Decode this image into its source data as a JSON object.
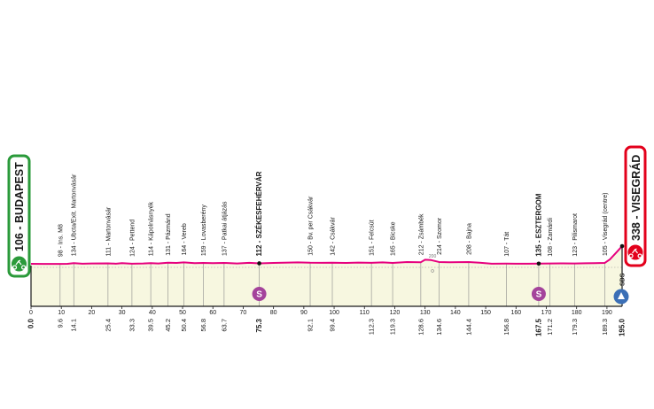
{
  "colors": {
    "profile_line": "#e6007e",
    "profile_fill": "#f7f7e0",
    "start_green": "#2a9a3a",
    "finish_red": "#e3001b",
    "sprint_purple": "#a4439b",
    "kom_blue": "#3b6fb6",
    "axis": "#1a1a1a",
    "text": "#1a1a1a"
  },
  "chart_data": {
    "type": "area",
    "start": {
      "altitude": "106",
      "name": "BUDAPEST"
    },
    "finish": {
      "altitude": "338",
      "name": "VISEGRÁD"
    },
    "x_ticks": [
      0,
      10,
      20,
      30,
      40,
      50,
      60,
      70,
      80,
      90,
      100,
      110,
      120,
      130,
      140,
      150,
      160,
      170,
      180,
      190
    ],
    "x_tick_labels": [
      "0",
      "10",
      "20",
      "30",
      "40",
      "50",
      "60",
      "70",
      "80",
      "90",
      "100",
      "110",
      "120",
      "130",
      "140",
      "150",
      "160",
      "170",
      "180",
      "190"
    ],
    "xlim": [
      0,
      195
    ],
    "total_distance_label": "195.0",
    "profile": {
      "x": [
        0,
        4,
        9.6,
        12,
        14.1,
        17,
        20,
        25.4,
        28,
        30,
        33.3,
        37,
        39.5,
        42,
        45.2,
        48,
        50.4,
        54,
        56.8,
        60,
        63.7,
        68,
        72,
        75.3,
        80,
        85,
        88,
        92.1,
        96,
        99.4,
        104,
        108,
        112.3,
        116,
        119.3,
        124,
        128.6,
        130,
        132,
        134.6,
        138,
        141,
        144.4,
        148,
        152,
        156.8,
        160,
        164,
        167.5,
        171.2,
        175,
        179.3,
        183,
        186,
        189.3,
        191,
        193,
        195
      ],
      "y": [
        106,
        104,
        105,
        106,
        115,
        108,
        110,
        112,
        108,
        115,
        107,
        110,
        115,
        111,
        120,
        118,
        125,
        115,
        117,
        114,
        118,
        110,
        119,
        112,
        118,
        122,
        125,
        120,
        119,
        120,
        117,
        122,
        119,
        125,
        118,
        130,
        127,
        160,
        155,
        130,
        126,
        128,
        130,
        120,
        108,
        109,
        107,
        108,
        109,
        110,
        112,
        110,
        113,
        115,
        118,
        165,
        250,
        338
      ]
    },
    "waypoints": [
      {
        "km": 9.6,
        "km_label": "9.6",
        "label": "98 - Ins. M8",
        "major": false
      },
      {
        "km": 14.1,
        "km_label": "14.1",
        "label": "134 - Ubcta/Exit. Martonvásár",
        "major": false
      },
      {
        "km": 25.4,
        "km_label": "25.4",
        "label": "111 - Martonvásár",
        "major": false
      },
      {
        "km": 33.3,
        "km_label": "33.3",
        "label": "124 - Pettend",
        "major": false
      },
      {
        "km": 39.5,
        "km_label": "39.5",
        "label": "114 - Kápolnásnyék",
        "major": false
      },
      {
        "km": 45.2,
        "km_label": "45.2",
        "label": "131 - Pázmánd",
        "major": false
      },
      {
        "km": 50.4,
        "km_label": "50.4",
        "label": "164 - Vereb",
        "major": false
      },
      {
        "km": 56.8,
        "km_label": "56.8",
        "label": "159 - Lovasberény",
        "major": false
      },
      {
        "km": 63.7,
        "km_label": "63.7",
        "label": "137 - Patkai átjázás",
        "major": false
      },
      {
        "km": 75.3,
        "km_label": "75.3",
        "label": "112 - SZÉKESFEHÉRVÁR",
        "major": true,
        "sprint": true
      },
      {
        "km": 92.1,
        "km_label": "92.1",
        "label": "150 - Bv. per Csákvár",
        "major": false
      },
      {
        "km": 99.4,
        "km_label": "99.4",
        "label": "142 - Csákvár",
        "major": false
      },
      {
        "km": 112.3,
        "km_label": "112.3",
        "label": "151 - Felcsút",
        "major": false
      },
      {
        "km": 119.3,
        "km_label": "119.3",
        "label": "165 - Bicske",
        "major": false
      },
      {
        "km": 128.6,
        "km_label": "128.6",
        "label": "212 - Zsámbék",
        "major": false
      },
      {
        "km": 134.6,
        "km_label": "134.6",
        "label": "214 - Szomor",
        "major": false
      },
      {
        "km": 144.4,
        "km_label": "144.4",
        "label": "208 - Bajna",
        "major": false
      },
      {
        "km": 156.8,
        "km_label": "156.8",
        "label": "107 - Tát",
        "major": false
      },
      {
        "km": 167.5,
        "km_label": "167.5",
        "label": "135 - ESZTERGOM",
        "major": true,
        "sprint": true
      },
      {
        "km": 171.2,
        "km_label": "171.2",
        "label": "108 - Zamárdi",
        "major": false
      },
      {
        "km": 179.3,
        "km_label": "179.3",
        "label": "123 - Pilismarot",
        "major": false
      },
      {
        "km": 189.3,
        "km_label": "189.3",
        "label": "105 - Visegrád (centre)",
        "major": false
      }
    ],
    "sprint_symbol": "S",
    "kom": {
      "km": 195,
      "label": "SDS"
    },
    "zsambek_marker": {
      "km": 131,
      "label": "200"
    }
  }
}
